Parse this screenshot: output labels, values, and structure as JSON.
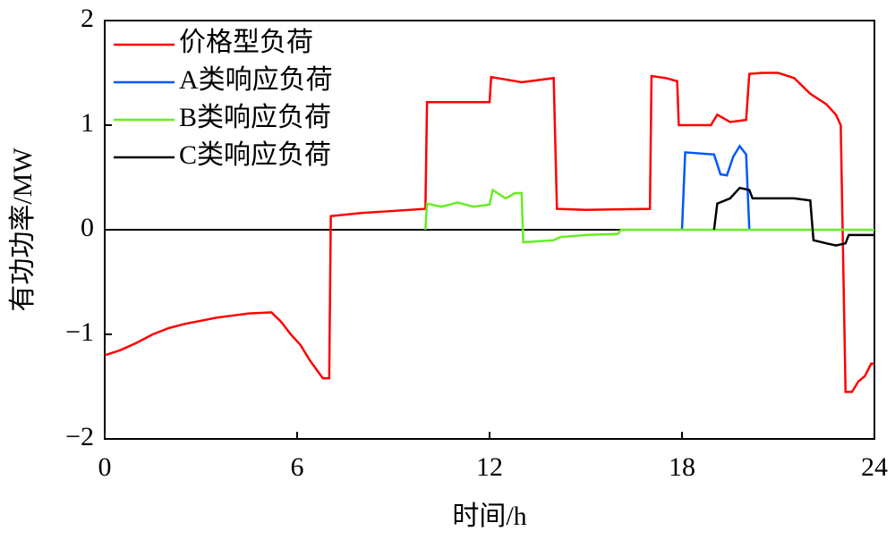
{
  "chart_data": {
    "type": "line",
    "xlabel": "时间/h",
    "ylabel": "有功功率/MW",
    "xlim": [
      0,
      24
    ],
    "ylim": [
      -2,
      2
    ],
    "xticks": [
      0,
      6,
      12,
      18,
      24
    ],
    "yticks": [
      {
        "value": -2,
        "label": "−2"
      },
      {
        "value": -1,
        "label": "−1"
      },
      0,
      1,
      2
    ],
    "zero_line": true,
    "legend": "upper left",
    "series": [
      {
        "name": "价格型负荷",
        "color": "#ff0000",
        "x": [
          0,
          0.5,
          1,
          1.5,
          2,
          2.5,
          3,
          3.5,
          4,
          4.5,
          5.2,
          5.5,
          5.8,
          6.1,
          6.4,
          6.8,
          7.0,
          7.05,
          8,
          9,
          10,
          10.05,
          11,
          12,
          12.05,
          13,
          14,
          14.1,
          15,
          17,
          17.05,
          17.5,
          17.85,
          17.9,
          18.9,
          19.1,
          19.5,
          20,
          20.1,
          20.5,
          21,
          21.5,
          22,
          22.5,
          22.8,
          22.95,
          23.1,
          23.3,
          23.5,
          23.7,
          23.9,
          24
        ],
        "values": [
          -1.2,
          -1.15,
          -1.08,
          -1.0,
          -0.94,
          -0.9,
          -0.87,
          -0.84,
          -0.82,
          -0.8,
          -0.79,
          -0.88,
          -1.0,
          -1.1,
          -1.25,
          -1.42,
          -1.42,
          0.13,
          0.16,
          0.18,
          0.2,
          1.22,
          1.22,
          1.22,
          1.46,
          1.41,
          1.45,
          0.2,
          0.19,
          0.2,
          1.47,
          1.45,
          1.42,
          1.0,
          1.0,
          1.1,
          1.03,
          1.05,
          1.49,
          1.5,
          1.5,
          1.45,
          1.3,
          1.2,
          1.1,
          1.0,
          -1.55,
          -1.55,
          -1.45,
          -1.4,
          -1.28,
          -1.28
        ]
      },
      {
        "name": "A类响应负荷",
        "color": "#0055ff",
        "x": [
          18.0,
          18.1,
          19.0,
          19.2,
          19.4,
          19.6,
          19.8,
          20.0,
          20.1
        ],
        "values": [
          0,
          0.74,
          0.72,
          0.53,
          0.52,
          0.7,
          0.8,
          0.72,
          0
        ]
      },
      {
        "name": "B类响应负荷",
        "color": "#66ee22",
        "x": [
          10.0,
          10.05,
          10.5,
          11,
          11.5,
          12,
          12.1,
          12.5,
          12.8,
          13.0,
          13.05,
          14,
          14.2,
          15,
          16.0,
          16.1,
          24
        ],
        "values": [
          0,
          0.25,
          0.22,
          0.26,
          0.22,
          0.24,
          0.38,
          0.3,
          0.35,
          0.35,
          -0.12,
          -0.1,
          -0.07,
          -0.05,
          -0.04,
          0,
          0
        ]
      },
      {
        "name": "C类响应负荷",
        "color": "#000000",
        "x": [
          19.0,
          19.1,
          19.5,
          19.8,
          20.1,
          20.2,
          21.5,
          22.0,
          22.1,
          22.5,
          22.8,
          23.1,
          23.2,
          24
        ],
        "values": [
          0,
          0.25,
          0.3,
          0.4,
          0.38,
          0.3,
          0.3,
          0.28,
          -0.1,
          -0.13,
          -0.15,
          -0.13,
          -0.05,
          -0.05
        ]
      }
    ]
  }
}
